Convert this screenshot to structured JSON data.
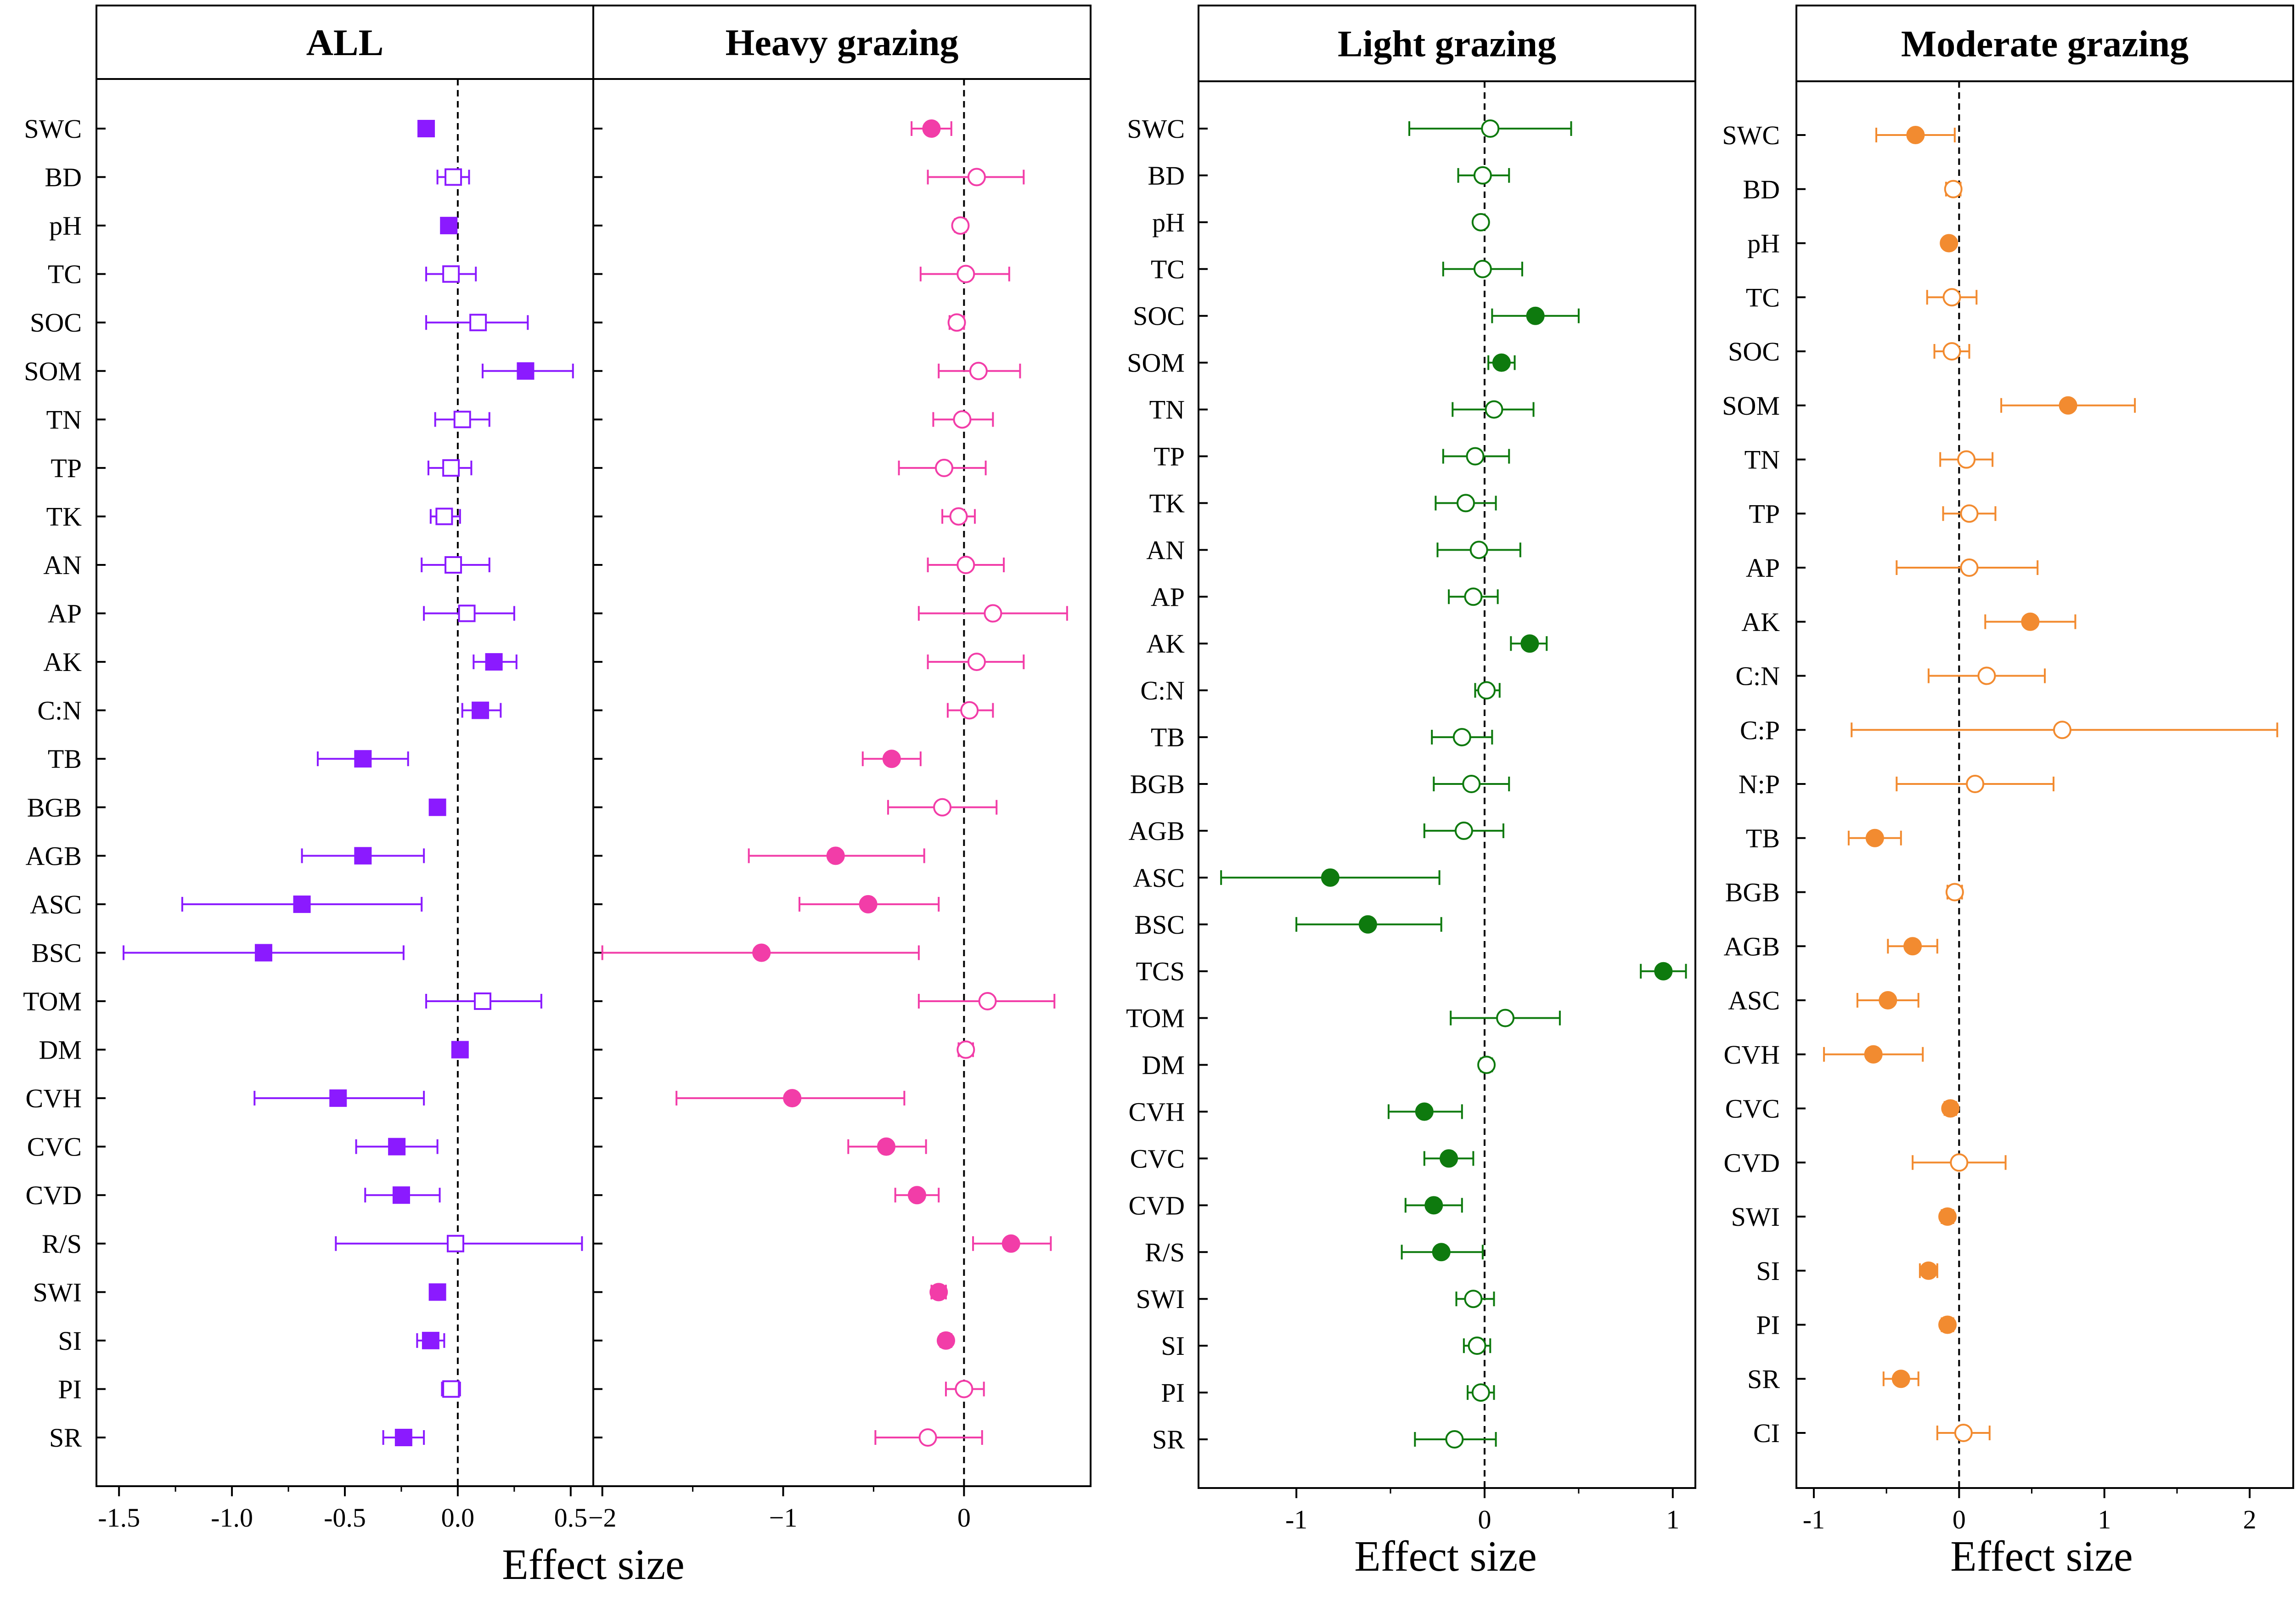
{
  "xlabel": "Effect size",
  "chart_data": [
    {
      "type": "scatter",
      "title": "ALL",
      "marker": "square",
      "color": "#8B1AFF",
      "xlim": [
        -1.6,
        0.6
      ],
      "xticks": [
        -1.5,
        -1.0,
        -0.5,
        0.0,
        0.5
      ],
      "xtick_labels": [
        "-1.5",
        "-1.0",
        "-0.5",
        "0.0",
        "0.5"
      ],
      "categories": [
        "SWC",
        "BD",
        "pH",
        "TC",
        "SOC",
        "SOM",
        "TN",
        "TP",
        "TK",
        "AN",
        "AP",
        "AK",
        "C:N",
        "TB",
        "BGB",
        "AGB",
        "ASC",
        "BSC",
        "TOM",
        "DM",
        "CVH",
        "CVC",
        "CVD",
        "R/S",
        "SWI",
        "SI",
        "PI",
        "SR"
      ],
      "values": [
        -0.14,
        -0.02,
        -0.04,
        -0.03,
        0.09,
        0.3,
        0.02,
        -0.03,
        -0.06,
        -0.02,
        0.04,
        0.16,
        0.1,
        -0.42,
        -0.09,
        -0.42,
        -0.69,
        -0.86,
        0.11,
        0.01,
        -0.53,
        -0.27,
        -0.25,
        -0.01,
        -0.09,
        -0.12,
        -0.03,
        -0.24
      ],
      "ci_low": [
        -0.16,
        -0.09,
        -0.06,
        -0.14,
        -0.14,
        0.11,
        -0.1,
        -0.13,
        -0.12,
        -0.16,
        -0.15,
        0.07,
        0.02,
        -0.62,
        -0.11,
        -0.69,
        -1.22,
        -1.48,
        -0.14,
        -0.01,
        -0.9,
        -0.45,
        -0.41,
        -0.54,
        -0.11,
        -0.18,
        -0.07,
        -0.33
      ],
      "ci_high": [
        -0.12,
        0.05,
        -0.02,
        0.08,
        0.31,
        0.51,
        0.14,
        0.06,
        0.01,
        0.14,
        0.25,
        0.26,
        0.19,
        -0.22,
        -0.07,
        -0.15,
        -0.16,
        -0.24,
        0.37,
        0.03,
        -0.15,
        -0.09,
        -0.08,
        0.55,
        -0.07,
        -0.06,
        0.01,
        -0.15
      ],
      "significant": [
        true,
        false,
        true,
        false,
        false,
        true,
        false,
        false,
        false,
        false,
        false,
        true,
        true,
        true,
        true,
        true,
        true,
        true,
        false,
        true,
        true,
        true,
        true,
        false,
        true,
        true,
        false,
        true
      ]
    },
    {
      "type": "scatter",
      "title": "Heavy grazing",
      "marker": "circle",
      "color": "#F23DA8",
      "xlim": [
        -2.05,
        0.7
      ],
      "xticks": [
        -2,
        -1,
        0
      ],
      "xtick_labels": [
        "−2",
        "−1",
        "0"
      ],
      "categories": [
        "SWC",
        "BD",
        "pH",
        "TC",
        "SOC",
        "SOM",
        "TN",
        "TP",
        "TK",
        "AN",
        "AP",
        "AK",
        "C:N",
        "TB",
        "BGB",
        "AGB",
        "ASC",
        "BSC",
        "TOM",
        "DM",
        "CVH",
        "CVC",
        "CVD",
        "R/S",
        "SWI",
        "SI",
        "PI",
        "SR"
      ],
      "values": [
        -0.18,
        0.07,
        -0.02,
        0.01,
        -0.04,
        0.08,
        -0.01,
        -0.11,
        -0.03,
        0.01,
        0.16,
        0.07,
        0.03,
        -0.4,
        -0.12,
        -0.71,
        -0.53,
        -1.12,
        0.13,
        0.01,
        -0.95,
        -0.43,
        -0.26,
        0.26,
        -0.14,
        -0.1,
        0.0,
        -0.2
      ],
      "ci_low": [
        -0.29,
        -0.2,
        -0.05,
        -0.24,
        -0.08,
        -0.14,
        -0.17,
        -0.36,
        -0.12,
        -0.2,
        -0.25,
        -0.2,
        -0.09,
        -0.56,
        -0.42,
        -1.19,
        -0.91,
        -2.0,
        -0.25,
        -0.03,
        -1.59,
        -0.64,
        -0.38,
        0.05,
        -0.18,
        -0.13,
        -0.1,
        -0.49
      ],
      "ci_high": [
        -0.07,
        0.33,
        0.01,
        0.25,
        0.0,
        0.31,
        0.16,
        0.12,
        0.06,
        0.22,
        0.57,
        0.33,
        0.16,
        -0.24,
        0.18,
        -0.22,
        -0.14,
        -0.25,
        0.5,
        0.05,
        -0.33,
        -0.21,
        -0.14,
        0.48,
        -0.1,
        -0.07,
        0.11,
        0.1
      ],
      "significant": [
        true,
        false,
        false,
        false,
        false,
        false,
        false,
        false,
        false,
        false,
        false,
        false,
        false,
        true,
        false,
        true,
        true,
        true,
        false,
        false,
        true,
        true,
        true,
        true,
        true,
        true,
        false,
        false
      ]
    },
    {
      "type": "scatter",
      "title": "Light grazing",
      "marker": "circle",
      "color": "#0E7A0E",
      "xlim": [
        -1.52,
        1.12
      ],
      "xticks": [
        -1,
        0,
        1
      ],
      "xtick_labels": [
        "-1",
        "0",
        "1"
      ],
      "categories": [
        "SWC",
        "BD",
        "pH",
        "TC",
        "SOC",
        "SOM",
        "TN",
        "TP",
        "TK",
        "AN",
        "AP",
        "AK",
        "C:N",
        "TB",
        "BGB",
        "AGB",
        "ASC",
        "BSC",
        "TCS",
        "TOM",
        "DM",
        "CVH",
        "CVC",
        "CVD",
        "R/S",
        "SWI",
        "SI",
        "PI",
        "SR"
      ],
      "values": [
        0.03,
        -0.01,
        -0.02,
        -0.01,
        0.27,
        0.09,
        0.05,
        -0.05,
        -0.1,
        -0.03,
        -0.06,
        0.24,
        0.01,
        -0.12,
        -0.07,
        -0.11,
        -0.82,
        -0.62,
        0.95,
        0.11,
        0.01,
        -0.32,
        -0.19,
        -0.27,
        -0.23,
        -0.06,
        -0.04,
        -0.02,
        -0.16
      ],
      "ci_low": [
        -0.4,
        -0.14,
        -0.04,
        -0.22,
        0.04,
        0.02,
        -0.17,
        -0.22,
        -0.26,
        -0.25,
        -0.19,
        0.14,
        -0.05,
        -0.28,
        -0.27,
        -0.32,
        -1.4,
        -1.0,
        0.83,
        -0.18,
        -0.02,
        -0.51,
        -0.32,
        -0.42,
        -0.44,
        -0.15,
        -0.11,
        -0.09,
        -0.37
      ],
      "ci_high": [
        0.46,
        0.13,
        0.0,
        0.2,
        0.5,
        0.16,
        0.26,
        0.13,
        0.06,
        0.19,
        0.07,
        0.33,
        0.08,
        0.04,
        0.13,
        0.1,
        -0.24,
        -0.23,
        1.07,
        0.4,
        0.04,
        -0.12,
        -0.06,
        -0.12,
        -0.01,
        0.05,
        0.03,
        0.05,
        0.06
      ],
      "significant": [
        false,
        false,
        false,
        false,
        true,
        true,
        false,
        false,
        false,
        false,
        false,
        true,
        false,
        false,
        false,
        false,
        true,
        true,
        true,
        false,
        false,
        true,
        true,
        true,
        true,
        false,
        false,
        false,
        false
      ]
    },
    {
      "type": "scatter",
      "title": "Moderate grazing",
      "marker": "circle",
      "color": "#F28B30",
      "xlim": [
        -1.12,
        2.3
      ],
      "xticks": [
        -1,
        0,
        1,
        2
      ],
      "xtick_labels": [
        "-1",
        "0",
        "1",
        "2"
      ],
      "categories": [
        "SWC",
        "BD",
        "pH",
        "TC",
        "SOC",
        "SOM",
        "TN",
        "TP",
        "AP",
        "AK",
        "C:N",
        "C:P",
        "N:P",
        "TB",
        "BGB",
        "AGB",
        "ASC",
        "CVH",
        "CVC",
        "CVD",
        "SWI",
        "SI",
        "PI",
        "SR",
        "CI"
      ],
      "values": [
        -0.3,
        -0.04,
        -0.07,
        -0.05,
        -0.05,
        0.75,
        0.05,
        0.07,
        0.07,
        0.49,
        0.19,
        0.71,
        0.11,
        -0.58,
        -0.03,
        -0.32,
        -0.49,
        -0.59,
        -0.06,
        0.0,
        -0.08,
        -0.21,
        -0.08,
        -0.4,
        0.03
      ],
      "ci_low": [
        -0.57,
        -0.09,
        -0.1,
        -0.22,
        -0.17,
        0.29,
        -0.13,
        -0.11,
        -0.43,
        0.18,
        -0.21,
        -0.74,
        -0.43,
        -0.76,
        -0.08,
        -0.49,
        -0.7,
        -0.93,
        -0.1,
        -0.32,
        -0.12,
        -0.27,
        -0.12,
        -0.52,
        -0.15
      ],
      "ci_high": [
        -0.03,
        0.01,
        -0.04,
        0.12,
        0.07,
        1.21,
        0.23,
        0.25,
        0.54,
        0.8,
        0.59,
        2.19,
        0.65,
        -0.4,
        0.02,
        -0.15,
        -0.28,
        -0.25,
        -0.02,
        0.32,
        -0.04,
        -0.15,
        -0.04,
        -0.28,
        0.21
      ],
      "significant": [
        true,
        false,
        true,
        false,
        false,
        true,
        false,
        false,
        false,
        true,
        false,
        false,
        false,
        true,
        false,
        true,
        true,
        true,
        true,
        false,
        true,
        true,
        true,
        true,
        false
      ]
    }
  ]
}
